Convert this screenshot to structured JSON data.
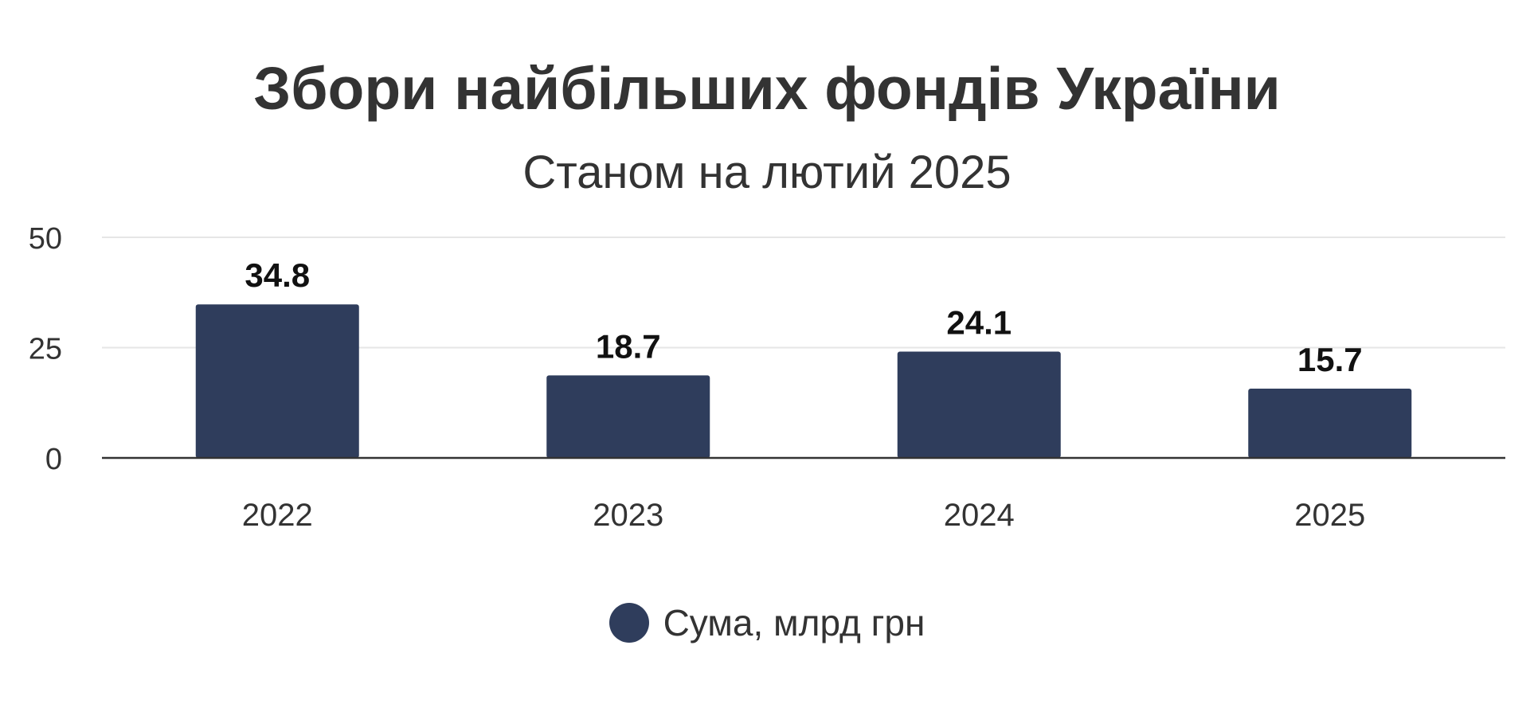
{
  "chart_data": {
    "type": "bar",
    "title": "Збори найбільших фондів України",
    "subtitle": "Станом на лютий 2025",
    "categories": [
      "2022",
      "2023",
      "2024",
      "2025"
    ],
    "series": [
      {
        "name": "Сума, млрд грн",
        "values": [
          34.8,
          18.7,
          24.1,
          15.7
        ],
        "color": "#2f3d5c"
      }
    ],
    "ylim": [
      0,
      50
    ],
    "yticks": [
      "0",
      "25",
      "50"
    ],
    "grid": true,
    "legend_position": "bottom",
    "data_labels": [
      "34.8",
      "18.7",
      "24.1",
      "15.7"
    ]
  },
  "colors": {
    "bar": "#2f3d5c",
    "grid": "#e6e6e6",
    "axis": "#333333",
    "text": "#333333"
  }
}
